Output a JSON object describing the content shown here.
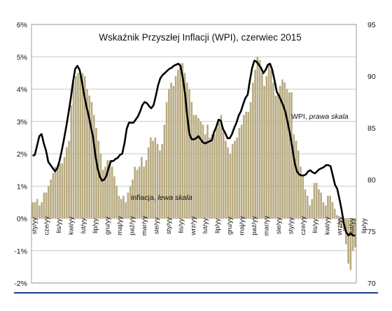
{
  "chart_data": {
    "type": "bar",
    "title": "Wskaźnik Przyszłej Inflacji (WPI), czerwiec 2015",
    "left_axis": {
      "ylim": [
        -2,
        6
      ],
      "ticks": [
        -2,
        -1,
        0,
        1,
        2,
        3,
        4,
        5,
        6
      ],
      "tick_labels": [
        "-2%",
        "-1%",
        "0%",
        "1%",
        "2%",
        "3%",
        "4%",
        "5%",
        "6%"
      ]
    },
    "right_axis": {
      "ylim": [
        70,
        95
      ],
      "ticks": [
        70,
        75,
        80,
        85,
        90,
        95
      ],
      "tick_labels": [
        "70",
        "75",
        "80",
        "85",
        "90",
        "95"
      ]
    },
    "x_tick_labels": [
      "sty/yy",
      "cze/yy",
      "lis/yy",
      "kwi/yy",
      "lut/yy",
      "lip/yy",
      "gru/yy",
      "maj/yy",
      "paź/yy",
      "mar/yy",
      "sie/yy",
      "sty/yy",
      "lis/yy",
      "wrz/yy",
      "lut/yy",
      "lip/yy",
      "gru/yy",
      "maj/yy",
      "paź/yy",
      "mar/yy",
      "sie/yy",
      "sty/yy",
      "cze/yy",
      "lis/yy",
      "kwi/yy",
      "wrz/yy",
      "lut/yy",
      "lip/yy"
    ],
    "annotations": {
      "inflation_prefix": "inflacja, ",
      "inflation_suffix": "lewa skala",
      "wpi_prefix": "WPI, ",
      "wpi_suffix": "prawa skala"
    },
    "grid": true,
    "colors": {
      "bars": "#b8ab80",
      "line": "#000000",
      "grid": "#b8b8b8"
    },
    "series": [
      {
        "kind": "bar",
        "axis": "left",
        "unit": "%",
        "values": [
          0.5,
          0.5,
          0.6,
          0.4,
          0.5,
          0.8,
          0.8,
          1.0,
          1.2,
          1.4,
          1.6,
          1.6,
          1.7,
          1.7,
          1.9,
          2.2,
          2.4,
          3.5,
          4.2,
          4.4,
          4.5,
          4.5,
          4.5,
          4.4,
          4.0,
          3.8,
          3.6,
          3.2,
          2.8,
          2.4,
          2.0,
          1.5,
          1.6,
          1.8,
          1.8,
          1.6,
          1.3,
          1.0,
          0.7,
          0.6,
          0.7,
          0.5,
          0.8,
          1.0,
          1.2,
          1.6,
          1.5,
          1.6,
          1.9,
          1.6,
          1.8,
          2.2,
          2.5,
          2.4,
          2.5,
          2.3,
          2.1,
          2.3,
          2.9,
          3.6,
          4.0,
          4.2,
          4.1,
          4.4,
          4.6,
          4.8,
          4.8,
          4.5,
          4.2,
          4.0,
          3.6,
          3.2,
          3.2,
          3.1,
          3.0,
          2.9,
          2.6,
          2.9,
          2.5,
          2.6,
          2.6,
          2.8,
          3.0,
          3.2,
          2.7,
          2.4,
          2.2,
          2.0,
          2.3,
          2.4,
          2.5,
          2.8,
          2.9,
          3.2,
          3.3,
          3.3,
          3.6,
          4.2,
          4.6,
          5.0,
          4.9,
          4.5,
          4.1,
          4.4,
          4.8,
          4.6,
          4.2,
          3.8,
          3.9,
          4.1,
          4.3,
          4.2,
          4.0,
          3.9,
          3.9,
          2.6,
          2.4,
          2.1,
          1.6,
          1.3,
          0.9,
          0.7,
          0.4,
          0.6,
          1.1,
          1.1,
          0.9,
          0.8,
          0.5,
          0.4,
          0.7,
          0.7,
          0.5,
          0.3,
          0.1,
          -0.2,
          -0.3,
          -0.4,
          -0.8,
          -1.4,
          -1.6,
          -1.0,
          -0.9
        ]
      },
      {
        "kind": "line",
        "axis": "right",
        "values": [
          82.3,
          82.4,
          83.3,
          84.2,
          84.4,
          83.5,
          82.8,
          81.7,
          81.4,
          81.1,
          80.8,
          81.1,
          81.8,
          82.8,
          83.9,
          85.1,
          86.4,
          87.8,
          89.4,
          90.7,
          91.0,
          90.6,
          89.5,
          88.2,
          87.1,
          86.2,
          85.1,
          84.1,
          82.4,
          81.1,
          80.3,
          79.9,
          80.0,
          80.4,
          81.2,
          81.8,
          81.8,
          82.0,
          82.1,
          82.4,
          82.5,
          83.5,
          84.9,
          85.5,
          85.5,
          85.5,
          85.8,
          86.1,
          86.6,
          87.2,
          87.5,
          87.4,
          87.1,
          86.9,
          87.2,
          88.1,
          89.1,
          89.8,
          90.1,
          90.3,
          90.5,
          90.7,
          90.8,
          91.0,
          91.1,
          91.2,
          91.0,
          89.9,
          88.4,
          86.2,
          84.4,
          83.9,
          83.9,
          84.0,
          84.2,
          83.9,
          83.6,
          83.5,
          83.6,
          83.7,
          83.8,
          84.6,
          85.1,
          85.8,
          85.7,
          84.9,
          84.5,
          84.0,
          84.0,
          84.4,
          85.0,
          85.5,
          86.2,
          86.6,
          87.3,
          87.9,
          88.2,
          89.6,
          90.8,
          91.5,
          91.4,
          91.1,
          90.8,
          90.3,
          90.6,
          91.1,
          91.2,
          90.6,
          89.6,
          88.5,
          88.1,
          87.6,
          87.1,
          86.4,
          85.4,
          84.3,
          83.0,
          81.6,
          80.8,
          80.5,
          80.4,
          80.4,
          80.5,
          80.8,
          80.9,
          80.7,
          80.6,
          80.8,
          81.0,
          81.1,
          81.2,
          81.4,
          81.4,
          81.3,
          80.4,
          79.5,
          79.1,
          78.1,
          77.0,
          75.7,
          74.9,
          74.6,
          74.8,
          74.6,
          74.6
        ]
      }
    ]
  }
}
